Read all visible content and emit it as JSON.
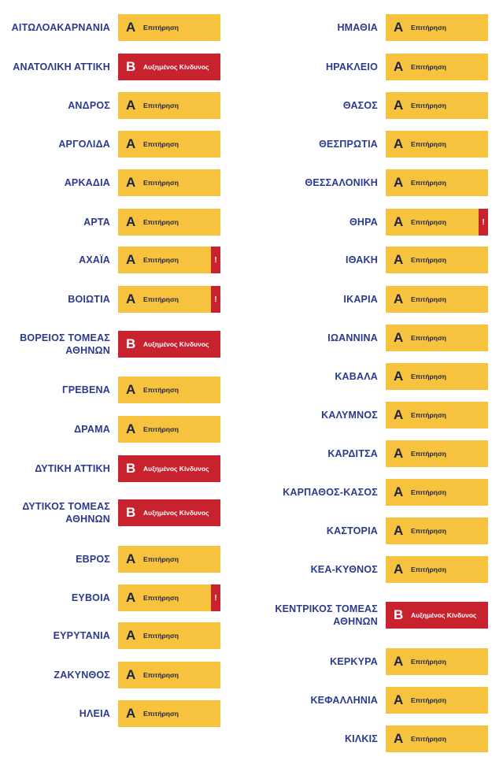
{
  "levels": {
    "A": {
      "letter": "A",
      "label": "Επιτήρηση",
      "color": "#f7c23e"
    },
    "B": {
      "letter": "B",
      "label": "Αυξημένος Κίνδυνος",
      "color": "#c8222f"
    }
  },
  "alert_symbol": "!",
  "left_column": [
    {
      "name": "ΑΙΤΩΛΟΑΚΑΡΝΑΝΙΑ",
      "level": "A",
      "alert": false
    },
    {
      "name": "ΑΝΑΤΟΛΙΚΗ ΑΤΤΙΚΗ",
      "level": "B",
      "alert": false
    },
    {
      "name": "ΑΝΔΡΟΣ",
      "level": "A",
      "alert": false
    },
    {
      "name": "ΑΡΓΟΛΙΔΑ",
      "level": "A",
      "alert": false
    },
    {
      "name": "ΑΡΚΑΔΙΑ",
      "level": "A",
      "alert": false
    },
    {
      "name": "ΑΡΤΑ",
      "level": "A",
      "alert": false
    },
    {
      "name": "ΑΧΑΪΑ",
      "level": "A",
      "alert": true
    },
    {
      "name": "ΒΟΙΩΤΙΑ",
      "level": "A",
      "alert": true
    },
    {
      "name": "ΒΟΡΕΙΟΣ ΤΟΜΕΑΣ ΑΘΗΝΩΝ",
      "level": "B",
      "alert": false
    },
    {
      "name": "ΓΡΕΒΕΝΑ",
      "level": "A",
      "alert": false
    },
    {
      "name": "ΔΡΑΜΑ",
      "level": "A",
      "alert": false
    },
    {
      "name": "ΔΥΤΙΚΗ ΑΤΤΙΚΗ",
      "level": "B",
      "alert": false
    },
    {
      "name": "ΔΥΤΙΚΟΣ ΤΟΜΕΑΣ ΑΘΗΝΩΝ",
      "level": "B",
      "alert": false
    },
    {
      "name": "ΕΒΡΟΣ",
      "level": "A",
      "alert": false
    },
    {
      "name": "ΕΥΒΟΙΑ",
      "level": "A",
      "alert": true
    },
    {
      "name": "ΕΥΡΥΤΑΝΙΑ",
      "level": "A",
      "alert": false
    },
    {
      "name": "ΖΑΚΥΝΘΟΣ",
      "level": "A",
      "alert": false
    },
    {
      "name": "ΗΛΕΙΑ",
      "level": "A",
      "alert": false
    }
  ],
  "right_column": [
    {
      "name": "ΗΜΑΘΙΑ",
      "level": "A",
      "alert": false
    },
    {
      "name": "ΗΡΑΚΛΕΙΟ",
      "level": "A",
      "alert": false
    },
    {
      "name": "ΘΑΣΟΣ",
      "level": "A",
      "alert": false
    },
    {
      "name": "ΘΕΣΠΡΩΤΙΑ",
      "level": "A",
      "alert": false
    },
    {
      "name": "ΘΕΣΣΑΛΟΝΙΚΗ",
      "level": "A",
      "alert": false
    },
    {
      "name": "ΘΗΡΑ",
      "level": "A",
      "alert": true
    },
    {
      "name": "ΙΘΑΚΗ",
      "level": "A",
      "alert": false
    },
    {
      "name": "ΙΚΑΡΙΑ",
      "level": "A",
      "alert": false
    },
    {
      "name": "ΙΩΑΝΝΙΝΑ",
      "level": "A",
      "alert": false
    },
    {
      "name": "ΚΑΒΑΛΑ",
      "level": "A",
      "alert": false
    },
    {
      "name": "ΚΑΛΥΜΝΟΣ",
      "level": "A",
      "alert": false
    },
    {
      "name": "ΚΑΡΔΙΤΣΑ",
      "level": "A",
      "alert": false
    },
    {
      "name": "ΚΑΡΠΑΘΟΣ-ΚΑΣΟΣ",
      "level": "A",
      "alert": false
    },
    {
      "name": "ΚΑΣΤΟΡΙΑ",
      "level": "A",
      "alert": false
    },
    {
      "name": "ΚΕΑ-ΚΥΘΝΟΣ",
      "level": "A",
      "alert": false
    },
    {
      "name": "ΚΕΝΤΡΙΚΟΣ ΤΟΜΕΑΣ ΑΘΗΝΩΝ",
      "level": "B",
      "alert": false
    },
    {
      "name": "ΚΕΡΚΥΡΑ",
      "level": "A",
      "alert": false
    },
    {
      "name": "ΚΕΦΑΛΛΗΝΙΑ",
      "level": "A",
      "alert": false
    },
    {
      "name": "ΚΙΛΚΙΣ",
      "level": "A",
      "alert": false
    }
  ]
}
